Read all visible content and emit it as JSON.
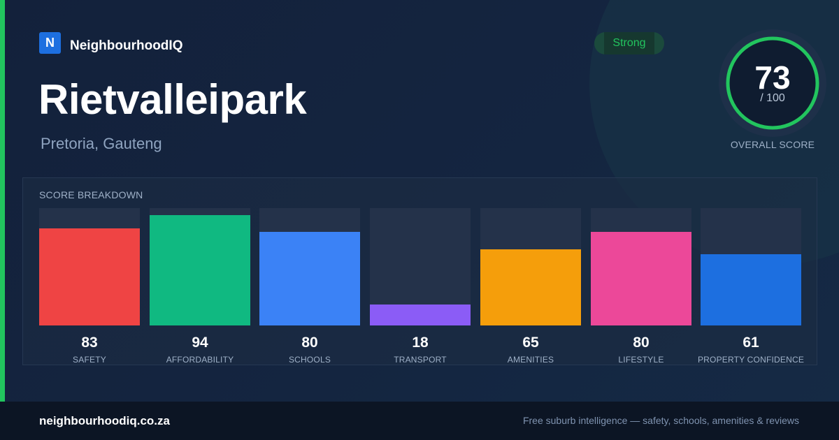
{
  "brand": {
    "logo_letter": "N",
    "name": "NeighbourhoodIQ",
    "logo_color": "#1d6fe0"
  },
  "suburb": {
    "name": "Rietvalleipark",
    "location": "Pretoria, Gauteng"
  },
  "badge": {
    "label": "Strong",
    "color": "#22c55e"
  },
  "overall": {
    "score": "73",
    "max_label": "/ 100",
    "caption": "OVERALL SCORE",
    "fraction": 0.73,
    "ring_color": "#22c55e"
  },
  "breakdown": {
    "title": "SCORE BREAKDOWN",
    "items": [
      {
        "label": "SAFETY",
        "value": "83",
        "score": 83,
        "color": "#ef4444"
      },
      {
        "label": "AFFORDABILITY",
        "value": "94",
        "score": 94,
        "color": "#10b981"
      },
      {
        "label": "SCHOOLS",
        "value": "80",
        "score": 80,
        "color": "#3b82f6"
      },
      {
        "label": "TRANSPORT",
        "value": "18",
        "score": 18,
        "color": "#8b5cf6"
      },
      {
        "label": "AMENITIES",
        "value": "65",
        "score": 65,
        "color": "#f59e0b"
      },
      {
        "label": "LIFESTYLE",
        "value": "80",
        "score": 80,
        "color": "#ec4899"
      },
      {
        "label": "PROPERTY CONFIDENCE",
        "value": "61",
        "score": 61,
        "color": "#1d6fe0"
      }
    ]
  },
  "footer": {
    "domain": "neighbourhoodiq.co.za",
    "tagline": "Free suburb intelligence — safety, schools, amenities & reviews"
  },
  "colors": {
    "accent": "#22c55e",
    "background": "#13213b",
    "footer_bg": "#0c1524"
  }
}
